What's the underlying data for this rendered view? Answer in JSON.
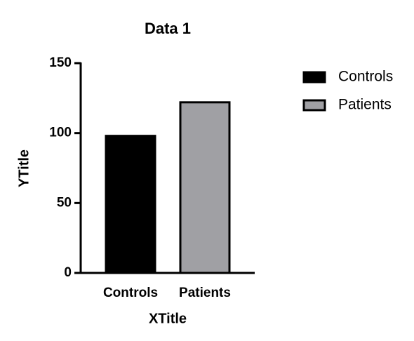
{
  "chart_data": {
    "type": "bar",
    "title": "Data 1",
    "x_label": "XTitle",
    "y_label": "YTitle",
    "categories": [
      "Controls",
      "Patients"
    ],
    "values": [
      98,
      122
    ],
    "colors": [
      "#000000",
      "#a0a0a4"
    ],
    "ylim": [
      0,
      150
    ],
    "yticks": [
      0,
      50,
      100,
      150
    ],
    "legend": "right"
  }
}
